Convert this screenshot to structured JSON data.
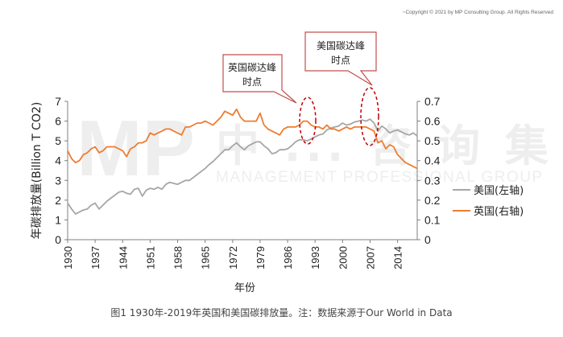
{
  "copyright": "~Copyright © 2021 by MP Consulting Group. All Rights Reserved",
  "watermark": {
    "logo": "MP",
    "cn": "中 ... 咨 询 集 团",
    "en": "MANAGEMENT PROFESSIONAL GROUP"
  },
  "caption": "图1  1930年-2019年英国和美国碳排放量。注：数据来源于Our World in Data",
  "callouts": [
    {
      "line1": "英国碳达峰",
      "line2": "时点"
    },
    {
      "line1": "美国碳达峰",
      "line2": "时点"
    }
  ],
  "colors": {
    "us": "#a6a6a6",
    "uk": "#ed7d31",
    "callout_border": "#c0504d",
    "ellipse": "#c00000"
  },
  "chart_data": {
    "type": "line",
    "xlabel": "年份",
    "ylabel": "年碳排放量(Billion T CO2)",
    "x_ticks": [
      "1930",
      "1937",
      "1944",
      "1951",
      "1958",
      "1965",
      "1972",
      "1979",
      "1986",
      "1993",
      "2000",
      "2007",
      "2014"
    ],
    "x_range": [
      1930,
      2019
    ],
    "y_left_range": [
      0,
      7
    ],
    "y_left_ticks": [
      "0",
      "1",
      "2",
      "3",
      "4",
      "5",
      "6",
      "7"
    ],
    "y_right_range": [
      0,
      0.7
    ],
    "y_right_ticks": [
      "0",
      "0.1",
      "0.2",
      "0.3",
      "0.4",
      "0.5",
      "0.6",
      "0.7"
    ],
    "legend_position": "right",
    "series": [
      {
        "name": "美国(左轴)",
        "axis": "left",
        "x": [
          1930,
          1931,
          1932,
          1933,
          1934,
          1935,
          1936,
          1937,
          1938,
          1939,
          1940,
          1941,
          1942,
          1943,
          1944,
          1945,
          1946,
          1947,
          1948,
          1949,
          1950,
          1951,
          1952,
          1953,
          1954,
          1955,
          1956,
          1957,
          1958,
          1959,
          1960,
          1961,
          1962,
          1963,
          1964,
          1965,
          1966,
          1967,
          1968,
          1969,
          1970,
          1971,
          1972,
          1973,
          1974,
          1975,
          1976,
          1977,
          1978,
          1979,
          1980,
          1981,
          1982,
          1983,
          1984,
          1985,
          1986,
          1987,
          1988,
          1989,
          1990,
          1991,
          1992,
          1993,
          1994,
          1995,
          1996,
          1997,
          1998,
          1999,
          2000,
          2001,
          2002,
          2003,
          2004,
          2005,
          2006,
          2007,
          2008,
          2009,
          2010,
          2011,
          2012,
          2013,
          2014,
          2015,
          2016,
          2017,
          2018,
          2019
        ],
        "values": [
          1.85,
          1.55,
          1.3,
          1.4,
          1.5,
          1.55,
          1.75,
          1.85,
          1.55,
          1.75,
          1.95,
          2.1,
          2.25,
          2.4,
          2.45,
          2.35,
          2.3,
          2.55,
          2.6,
          2.2,
          2.5,
          2.6,
          2.55,
          2.65,
          2.55,
          2.8,
          2.9,
          2.85,
          2.8,
          2.9,
          3.0,
          3.0,
          3.15,
          3.3,
          3.45,
          3.6,
          3.8,
          3.95,
          4.15,
          4.35,
          4.55,
          4.55,
          4.75,
          4.9,
          4.7,
          4.55,
          4.75,
          4.85,
          4.95,
          4.95,
          4.75,
          4.6,
          4.35,
          4.4,
          4.55,
          4.55,
          4.6,
          4.75,
          4.95,
          5.05,
          5.05,
          5.0,
          5.1,
          5.2,
          5.3,
          5.35,
          5.55,
          5.65,
          5.7,
          5.75,
          5.9,
          5.8,
          5.85,
          5.95,
          6.0,
          6.05,
          6.0,
          6.1,
          5.9,
          5.5,
          5.75,
          5.6,
          5.4,
          5.5,
          5.55,
          5.45,
          5.35,
          5.3,
          5.4,
          5.25
        ]
      },
      {
        "name": "英国(右轴)",
        "axis": "right",
        "x": [
          1930,
          1931,
          1932,
          1933,
          1934,
          1935,
          1936,
          1937,
          1938,
          1939,
          1940,
          1941,
          1942,
          1943,
          1944,
          1945,
          1946,
          1947,
          1948,
          1949,
          1950,
          1951,
          1952,
          1953,
          1954,
          1955,
          1956,
          1957,
          1958,
          1959,
          1960,
          1961,
          1962,
          1963,
          1964,
          1965,
          1966,
          1967,
          1968,
          1969,
          1970,
          1971,
          1972,
          1973,
          1974,
          1975,
          1976,
          1977,
          1978,
          1979,
          1980,
          1981,
          1982,
          1983,
          1984,
          1985,
          1986,
          1987,
          1988,
          1989,
          1990,
          1991,
          1992,
          1993,
          1994,
          1995,
          1996,
          1997,
          1998,
          1999,
          2000,
          2001,
          2002,
          2003,
          2004,
          2005,
          2006,
          2007,
          2008,
          2009,
          2010,
          2011,
          2012,
          2013,
          2014,
          2015,
          2016,
          2017,
          2018,
          2019
        ],
        "values": [
          0.45,
          0.41,
          0.39,
          0.4,
          0.43,
          0.44,
          0.46,
          0.47,
          0.44,
          0.45,
          0.47,
          0.47,
          0.47,
          0.46,
          0.45,
          0.42,
          0.46,
          0.47,
          0.49,
          0.49,
          0.5,
          0.54,
          0.53,
          0.54,
          0.55,
          0.56,
          0.56,
          0.55,
          0.54,
          0.53,
          0.57,
          0.57,
          0.58,
          0.59,
          0.59,
          0.6,
          0.59,
          0.58,
          0.6,
          0.62,
          0.65,
          0.64,
          0.63,
          0.66,
          0.62,
          0.6,
          0.6,
          0.6,
          0.6,
          0.64,
          0.58,
          0.56,
          0.55,
          0.54,
          0.53,
          0.56,
          0.57,
          0.57,
          0.57,
          0.58,
          0.6,
          0.6,
          0.58,
          0.57,
          0.57,
          0.56,
          0.58,
          0.56,
          0.56,
          0.55,
          0.56,
          0.57,
          0.56,
          0.57,
          0.57,
          0.57,
          0.57,
          0.56,
          0.55,
          0.49,
          0.5,
          0.46,
          0.48,
          0.47,
          0.43,
          0.41,
          0.39,
          0.38,
          0.37,
          0.36
        ]
      }
    ]
  }
}
